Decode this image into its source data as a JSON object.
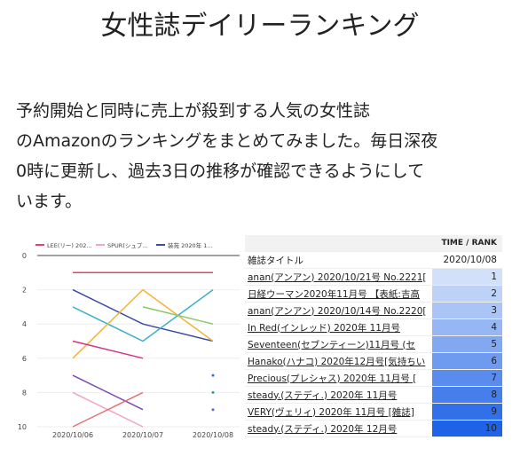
{
  "header": {
    "title": "女性誌デイリーランキング"
  },
  "paragraph": {
    "lines": [
      "予約開始と同時に売上が殺到する人気の女性誌",
      "のAmazonのランキングをまとめてみました。毎日深夜",
      "0時に更新し、過去3日の推移が確認できるようにして",
      "います。"
    ]
  },
  "chart_data": {
    "type": "line",
    "categories": [
      "2020/10/06",
      "2020/10/07",
      "2020/10/08"
    ],
    "ylim": [
      0,
      10
    ],
    "y_inverted": true,
    "yticks": [
      0,
      2,
      4,
      6,
      8,
      10
    ],
    "grid": true,
    "series": [
      {
        "name": "LEE(リー) 202...",
        "color": "#e8426a",
        "values": [
          1,
          1,
          1
        ]
      },
      {
        "name": "SPUR(シュプ...",
        "color": "#f4a6c0",
        "values": [
          8,
          10,
          null
        ]
      },
      {
        "name": "装苑 2020年 1...",
        "color": "#3b4aa8",
        "values": [
          2,
          4,
          5
        ]
      },
      {
        "color": "#3fb0c9",
        "values": [
          3,
          5,
          2
        ]
      },
      {
        "color": "#f5b335",
        "values": [
          6,
          2,
          5
        ]
      },
      {
        "color": "#8cc66b",
        "values": [
          null,
          3,
          4
        ]
      },
      {
        "color": "#d63384",
        "values": [
          5,
          6,
          null
        ]
      },
      {
        "color": "#7b4bb0",
        "values": [
          7,
          9,
          null
        ]
      },
      {
        "color": "#e57373",
        "values": [
          10,
          8,
          null
        ]
      },
      {
        "color": "#2a6fdb",
        "values": [
          null,
          null,
          7
        ]
      },
      {
        "color": "#26a69a",
        "values": [
          null,
          null,
          8
        ]
      },
      {
        "color": "#5c6bc0",
        "values": [
          null,
          null,
          9
        ]
      }
    ]
  },
  "table": {
    "group_header": "TIME / RANK",
    "columns": [
      "雑誌タイトル",
      "2020/10/08"
    ],
    "rows": [
      [
        "anan(アンアン) 2020/10/21号 No.2221[",
        1
      ],
      [
        "日経ウーマン2020年11月号 【表紙:吉高",
        2
      ],
      [
        "anan(アンアン) 2020/10/14号 No.2220[",
        3
      ],
      [
        "In Red(インレッド) 2020年 11月号",
        4
      ],
      [
        "Seventeen(セブンティーン)11月号 (セ",
        5
      ],
      [
        "Hanako(ハナコ) 2020年12月号[気持ちい",
        6
      ],
      [
        "Precious(プレシャス) 2020年 11月号 [",
        7
      ],
      [
        "steady.(ステディ.) 2020年 11月号",
        8
      ],
      [
        "VERY(ヴェリィ) 2020年 11月号 [雑誌]",
        9
      ],
      [
        "steady.(ステディ.) 2020年 12月号",
        10
      ]
    ]
  }
}
